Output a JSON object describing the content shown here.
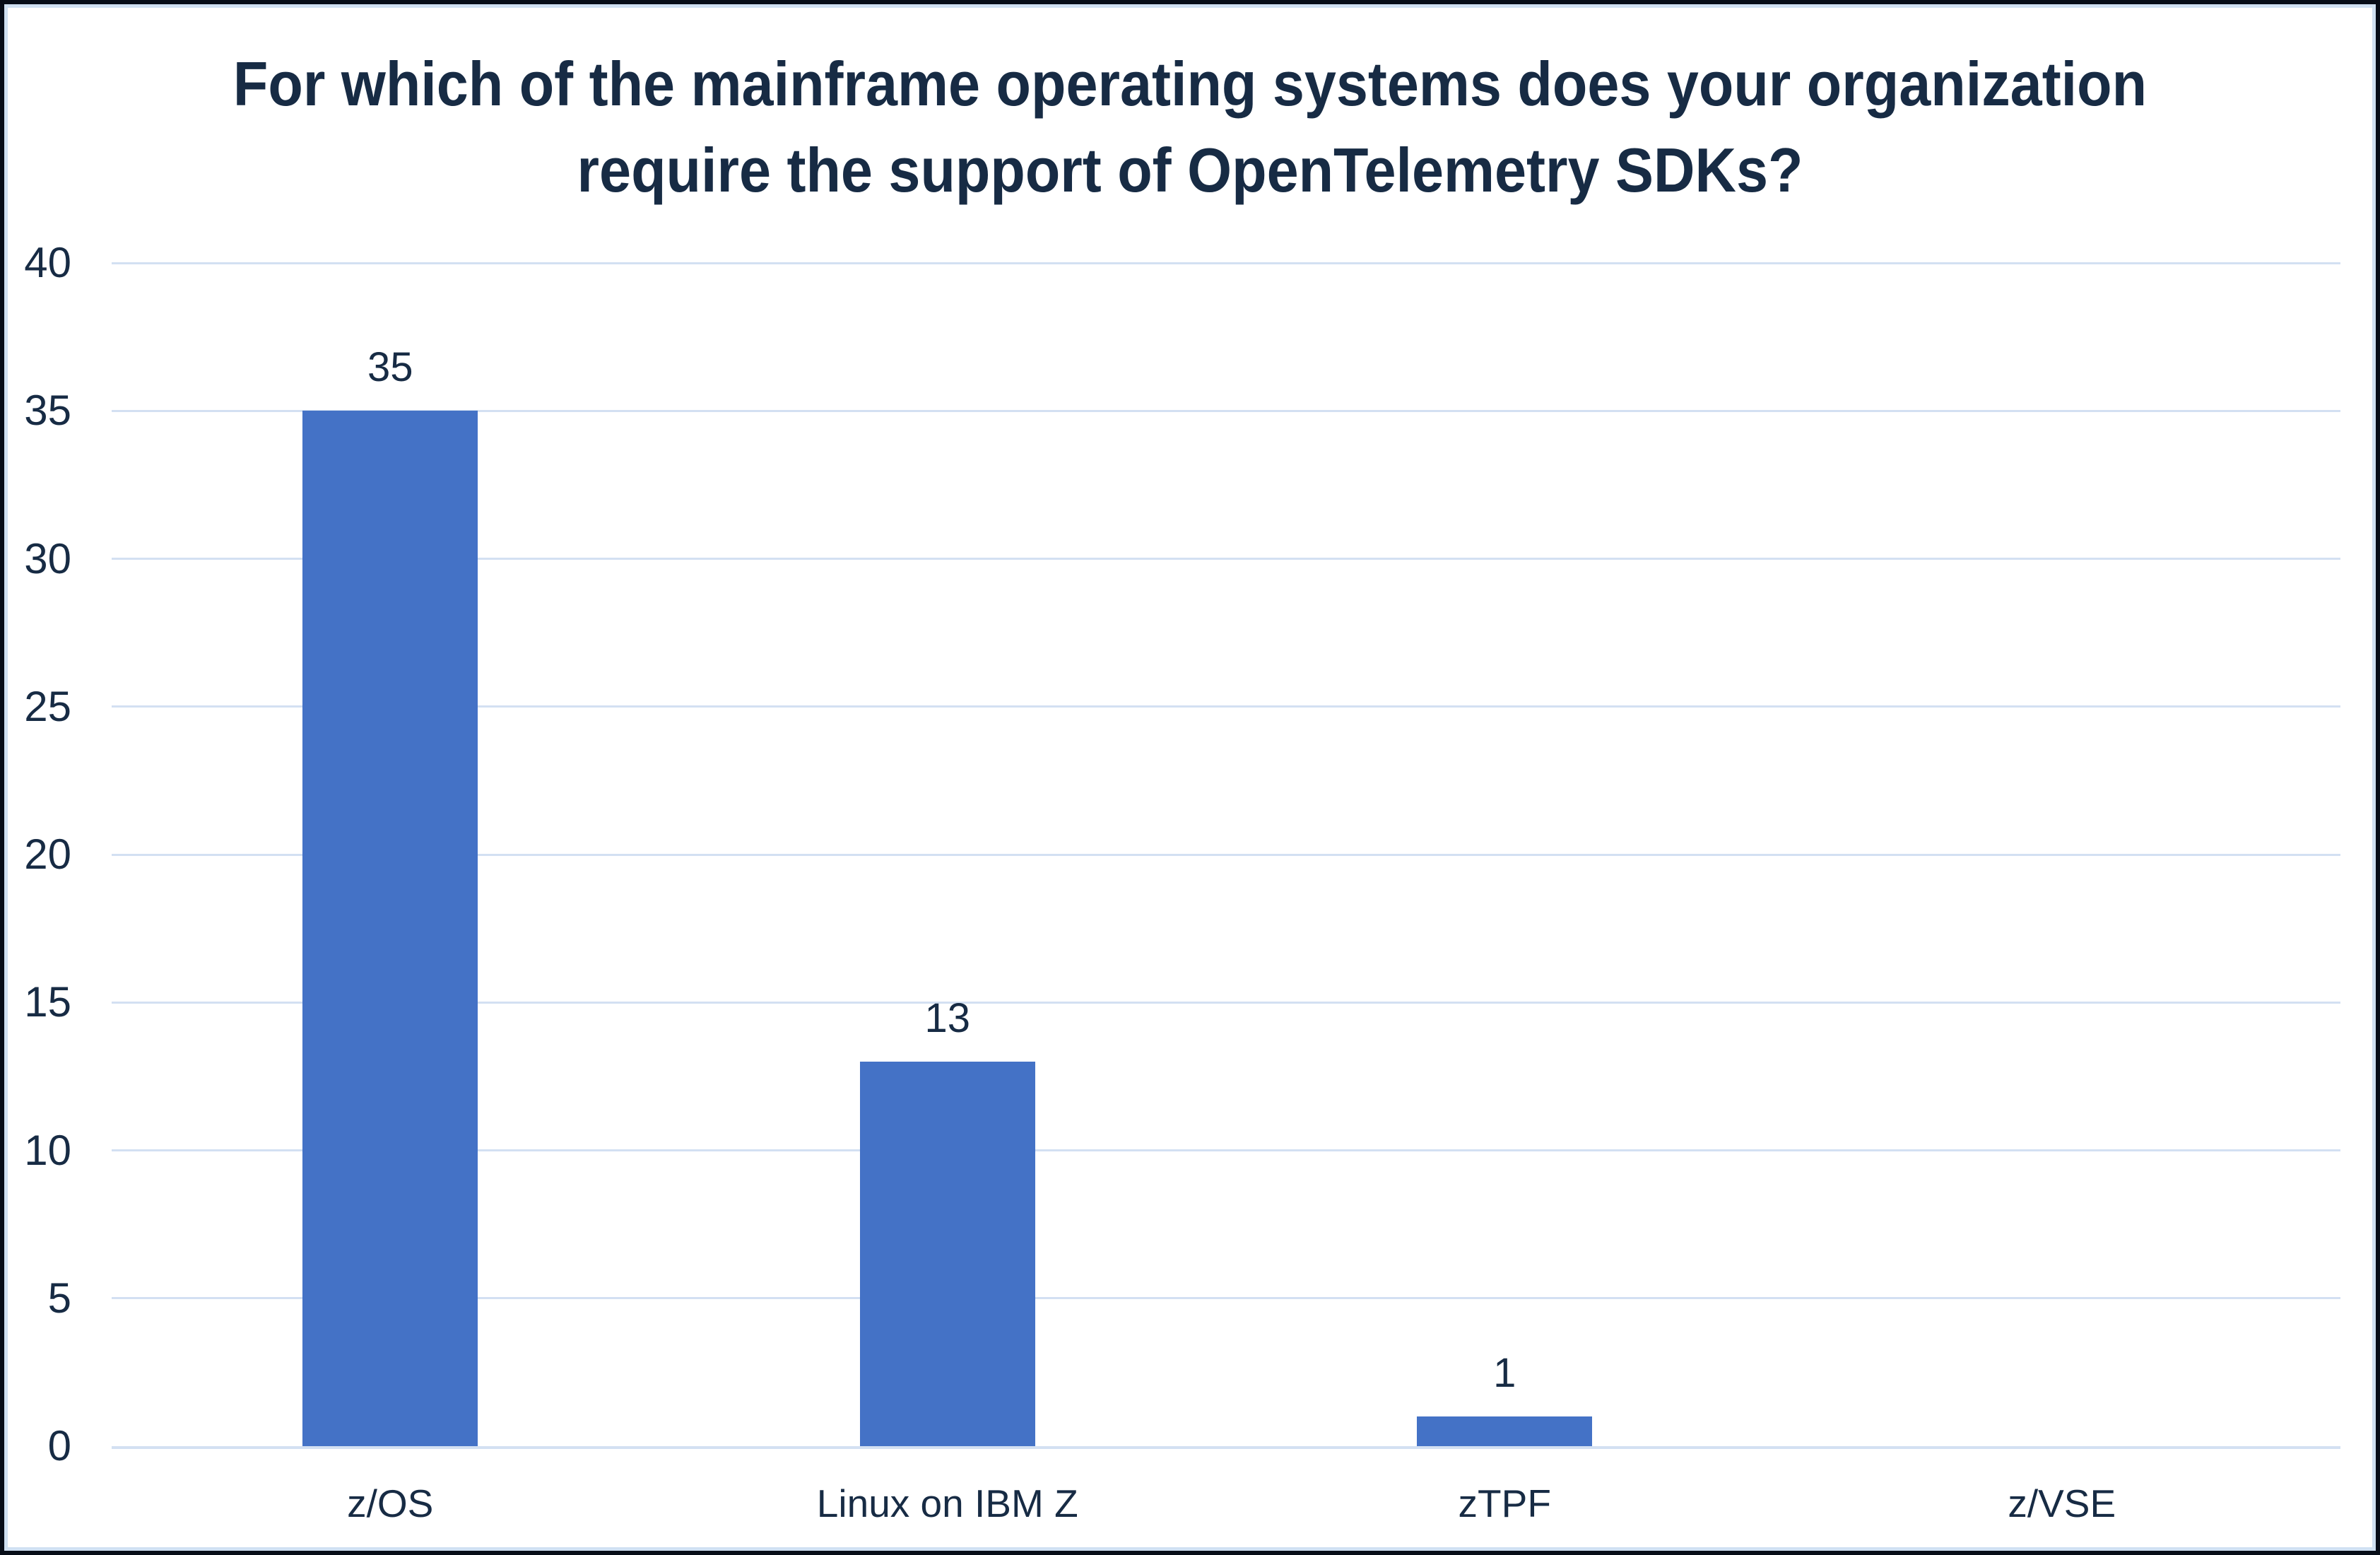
{
  "chart_data": {
    "type": "bar",
    "title": "For which of the mainframe operating systems does your organization require the support of OpenTelemetry SDKs?",
    "categories": [
      "z/OS",
      "Linux on IBM Z",
      "zTPF",
      "z/VSE"
    ],
    "values": [
      35,
      13,
      1,
      0
    ],
    "data_labels": [
      "35",
      "13",
      "1",
      ""
    ],
    "yticks": [
      "0",
      "5",
      "10",
      "15",
      "20",
      "25",
      "30",
      "35",
      "40"
    ],
    "ylim": [
      0,
      40
    ],
    "xlabel": "",
    "ylabel": "",
    "grid": true,
    "legend": "none",
    "bar_color": "#4472C6",
    "gridline_color": "#D3E0F2",
    "text_color": "#172B44",
    "frame_border_color": "#070D18",
    "frame_inner_line_color": "#CFE0F2"
  }
}
